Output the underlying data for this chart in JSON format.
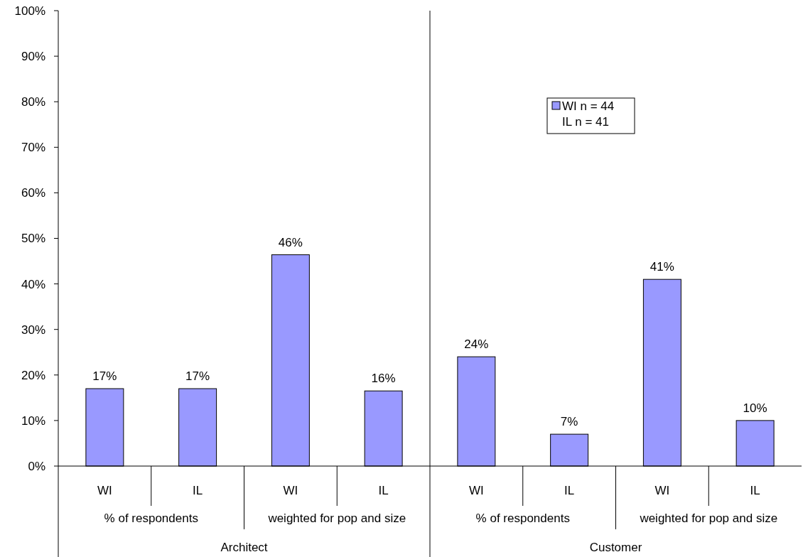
{
  "chart_data": {
    "type": "bar",
    "categories": [
      "WI",
      "IL",
      "WI",
      "IL",
      "WI",
      "IL",
      "WI",
      "IL"
    ],
    "series": [
      {
        "name": "WI n = 44",
        "color": "#9999ff",
        "values": [
          17,
          17,
          46.4,
          16.5,
          24,
          7,
          41,
          10
        ],
        "value_labels": [
          "17%",
          "17%",
          "46%",
          "16%",
          "24%",
          "7%",
          "41%",
          "10%"
        ]
      }
    ],
    "ylim": [
      0,
      100
    ],
    "yticks": [
      {
        "value": 0,
        "label": "0%"
      },
      {
        "value": 10,
        "label": "10%"
      },
      {
        "value": 20,
        "label": "20%"
      },
      {
        "value": 30,
        "label": "30%"
      },
      {
        "value": 40,
        "label": "40%"
      },
      {
        "value": 50,
        "label": "50%"
      },
      {
        "value": 60,
        "label": "60%"
      },
      {
        "value": 70,
        "label": "70%"
      },
      {
        "value": 80,
        "label": "80%"
      },
      {
        "value": 90,
        "label": "90%"
      },
      {
        "value": 100,
        "label": "100%"
      }
    ],
    "annotations": [
      "IL n = 41",
      "% of respondents",
      "weighted for pop and size",
      "% of respondents",
      "weighted for pop and size",
      "Architect",
      "Customer"
    ],
    "legend": "top right",
    "grid": false
  }
}
